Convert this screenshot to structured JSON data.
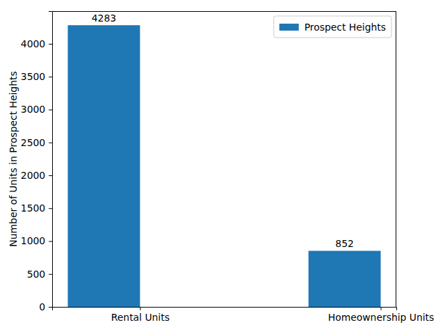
{
  "chart_data": {
    "type": "bar",
    "categories": [
      "Rental Units",
      "Homeownership Units"
    ],
    "series": [
      {
        "name": "Prospect Heights",
        "color": "#1f77b4",
        "values": [
          4283,
          852
        ]
      }
    ],
    "y_label": "Number of Units in Prospect Heights",
    "ylim": [
      0,
      4497
    ],
    "yticks": [
      0,
      500,
      1000,
      1500,
      2000,
      2500,
      3000,
      3500,
      4000
    ],
    "legend": "upper right",
    "data_labels": true,
    "grid": false
  }
}
